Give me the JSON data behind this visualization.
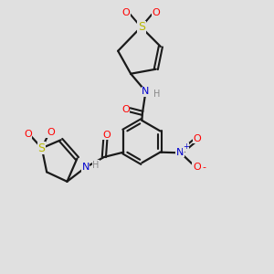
{
  "bg_color": "#e0e0e0",
  "bond_color": "#1a1a1a",
  "atom_colors": {
    "O": "#ff0000",
    "N": "#0000cd",
    "S": "#b8b800",
    "H": "#888888",
    "C": "#1a1a1a",
    "plus": "#0000cd",
    "minus": "#ff0000"
  },
  "figsize": [
    3.0,
    3.0
  ],
  "dpi": 100
}
